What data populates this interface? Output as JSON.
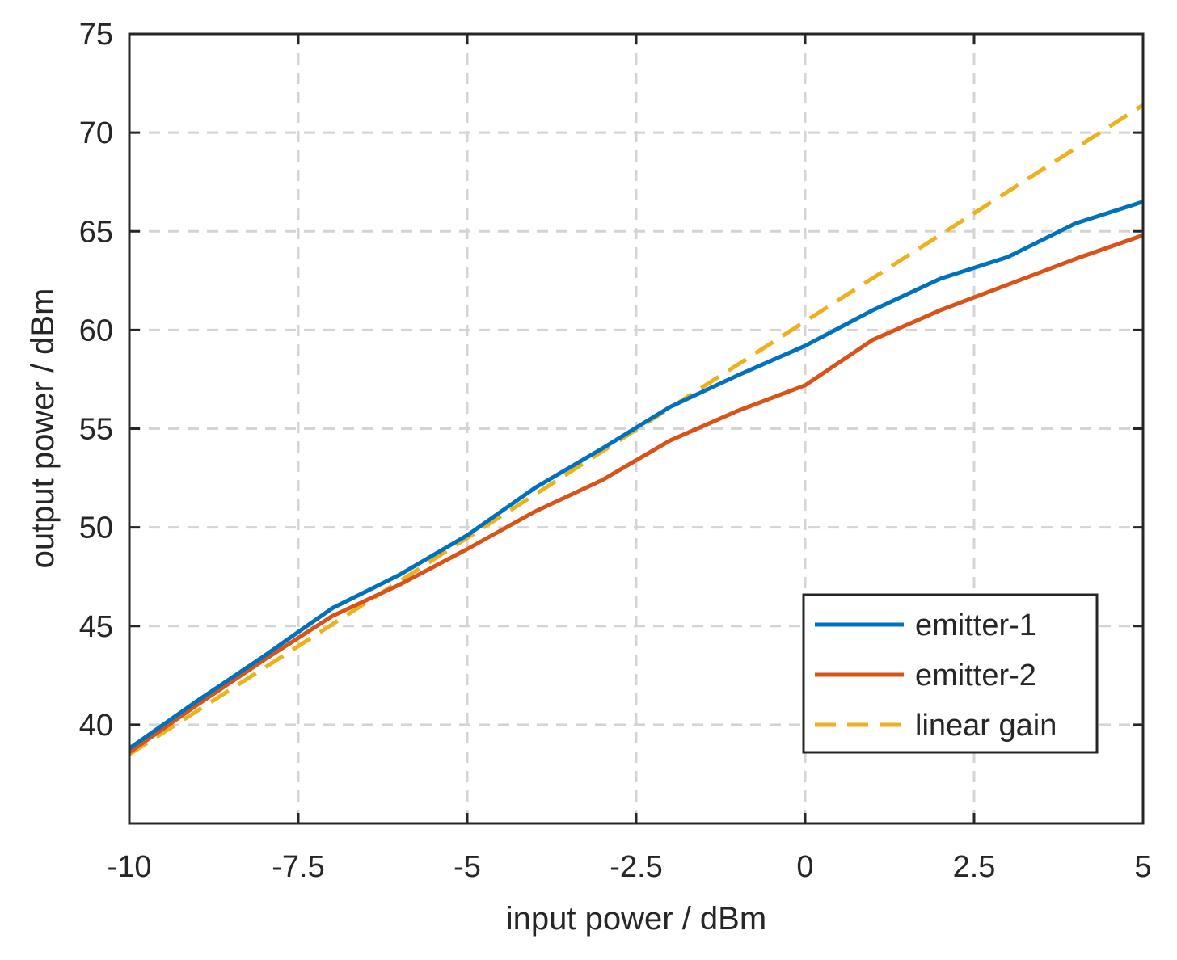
{
  "chart_data": {
    "type": "line",
    "title": "",
    "xlabel": "input power / dBm",
    "ylabel": "output power / dBm",
    "xlim": [
      -10,
      5
    ],
    "ylim": [
      35,
      75
    ],
    "xticks": [
      -10,
      -7.5,
      -5,
      -2.5,
      0,
      2.5,
      5
    ],
    "xtick_labels": [
      "-10",
      "-7.5",
      "-5",
      "-2.5",
      "0",
      "2.5",
      "5"
    ],
    "yticks": [
      40,
      45,
      50,
      55,
      60,
      65,
      70,
      75
    ],
    "ytick_labels": [
      "40",
      "45",
      "50",
      "55",
      "60",
      "65",
      "70",
      "75"
    ],
    "grid": true,
    "legend_position": "bottom-right",
    "series": [
      {
        "name": "emitter-1",
        "color": "#0072BD",
        "style": "solid",
        "x": [
          -10,
          -9,
          -8,
          -7,
          -6,
          -5,
          -4,
          -3,
          -2,
          -1,
          0,
          1,
          2,
          3,
          4,
          5
        ],
        "y": [
          38.8,
          41.2,
          43.5,
          45.9,
          47.6,
          49.6,
          52.0,
          54.0,
          56.1,
          57.7,
          59.2,
          61.0,
          62.6,
          63.7,
          65.4,
          66.5
        ]
      },
      {
        "name": "emitter-2",
        "color": "#D95319",
        "style": "solid",
        "x": [
          -10,
          -9,
          -8,
          -7,
          -6,
          -5,
          -4,
          -3,
          -2,
          -1,
          0,
          1,
          2,
          3,
          4,
          5
        ],
        "y": [
          38.6,
          41.0,
          43.3,
          45.5,
          47.1,
          48.9,
          50.8,
          52.4,
          54.4,
          55.9,
          57.2,
          59.5,
          61.0,
          62.3,
          63.6,
          64.8
        ]
      },
      {
        "name": "linear gain",
        "color": "#EDB120",
        "style": "dashed",
        "x": [
          -10,
          5
        ],
        "y": [
          38.5,
          71.4
        ]
      }
    ]
  }
}
